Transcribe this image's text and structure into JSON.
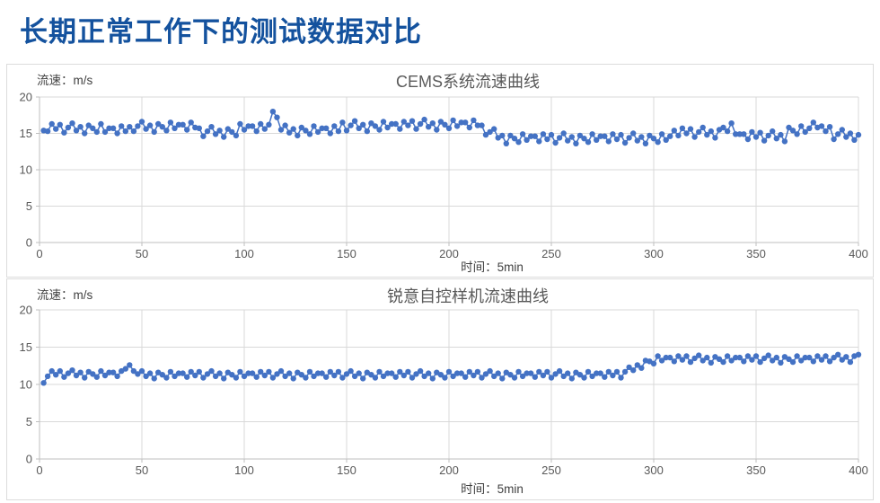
{
  "page": {
    "title": "长期正常工作下的测试数据对比",
    "title_color": "#14529E",
    "background": "#FFFFFF",
    "marker_color": "#4472C4",
    "grid_color": "#D9D9D9",
    "axis_color": "#BFBFBF"
  },
  "chart_data": [
    {
      "type": "scatter",
      "title": "CEMS系统流速曲线",
      "ylabel": "流速：m/s",
      "xlabel": "时间：5min",
      "xlim": [
        0,
        400
      ],
      "ylim": [
        0,
        20
      ],
      "x_ticks": [
        0,
        50,
        100,
        150,
        200,
        250,
        300,
        350,
        400
      ],
      "y_ticks": [
        0,
        5,
        10,
        15,
        20
      ],
      "grid": true,
      "legend": "none",
      "marker_color": "#4472C4",
      "x_start": 2,
      "x_step": 2,
      "values": [
        15.4,
        15.3,
        16.3,
        15.6,
        16.2,
        15.1,
        15.8,
        16.4,
        15.4,
        15.9,
        15.0,
        16.1,
        15.7,
        15.2,
        16.3,
        15.2,
        15.7,
        15.7,
        15.0,
        16.0,
        15.3,
        15.9,
        15.3,
        16.0,
        16.6,
        15.6,
        16.1,
        15.2,
        16.3,
        15.9,
        15.4,
        16.5,
        15.7,
        16.2,
        16.2,
        15.5,
        16.5,
        15.8,
        15.7,
        14.6,
        15.3,
        15.9,
        14.9,
        15.4,
        14.5,
        15.6,
        15.2,
        14.7,
        16.3,
        15.5,
        16.0,
        16.0,
        15.3,
        16.3,
        15.6,
        16.2,
        18.0,
        17.2,
        15.5,
        16.1,
        15.1,
        15.6,
        14.7,
        15.8,
        15.4,
        14.9,
        16.0,
        15.2,
        15.7,
        15.7,
        15.0,
        16.0,
        15.3,
        16.5,
        15.4,
        16.1,
        16.7,
        15.7,
        16.2,
        15.3,
        16.4,
        16.0,
        15.5,
        16.6,
        15.8,
        16.3,
        16.3,
        15.6,
        16.6,
        16.1,
        16.7,
        15.6,
        16.3,
        16.9,
        15.9,
        16.4,
        15.5,
        16.6,
        16.2,
        15.7,
        16.8,
        16.0,
        16.5,
        16.5,
        15.8,
        16.8,
        16.1,
        16.1,
        14.8,
        15.2,
        15.6,
        14.4,
        14.7,
        13.6,
        14.7,
        14.3,
        13.8,
        14.9,
        14.1,
        14.6,
        14.6,
        13.9,
        14.9,
        14.2,
        14.8,
        13.7,
        14.4,
        15.0,
        14.0,
        14.5,
        13.6,
        14.7,
        14.3,
        13.8,
        14.9,
        14.1,
        14.6,
        14.6,
        13.9,
        14.9,
        14.2,
        14.8,
        13.7,
        14.4,
        15.0,
        14.0,
        14.5,
        13.6,
        14.7,
        14.3,
        13.8,
        14.9,
        14.1,
        14.6,
        15.4,
        14.7,
        15.7,
        15.0,
        15.6,
        14.5,
        15.2,
        15.8,
        14.8,
        15.3,
        14.4,
        15.5,
        15.8,
        15.3,
        16.4,
        14.9,
        14.9,
        14.9,
        14.2,
        15.2,
        14.5,
        15.1,
        14.0,
        14.7,
        15.3,
        14.3,
        14.8,
        13.9,
        15.8,
        15.4,
        14.9,
        16.0,
        15.2,
        15.7,
        16.5,
        15.8,
        16.0,
        15.3,
        15.9,
        14.2,
        14.9,
        15.5,
        14.5,
        15.0,
        14.1,
        14.8
      ]
    },
    {
      "type": "scatter",
      "title": "锐意自控样机流速曲线",
      "ylabel": "流速：m/s",
      "xlabel": "时间：5min",
      "xlim": [
        0,
        400
      ],
      "ylim": [
        0,
        20
      ],
      "x_ticks": [
        0,
        50,
        100,
        150,
        200,
        250,
        300,
        350,
        400
      ],
      "y_ticks": [
        0,
        5,
        10,
        15,
        20
      ],
      "grid": true,
      "legend": "none",
      "marker_color": "#4472C4",
      "x_start": 2,
      "x_step": 2,
      "values": [
        10.2,
        11.1,
        11.8,
        11.3,
        11.8,
        11.0,
        11.5,
        11.9,
        11.2,
        11.6,
        10.9,
        11.7,
        11.4,
        11.0,
        11.8,
        11.2,
        11.6,
        11.6,
        11.1,
        11.8,
        12.1,
        12.6,
        11.8,
        11.4,
        11.8,
        11.1,
        11.5,
        10.8,
        11.6,
        11.3,
        10.9,
        11.7,
        11.1,
        11.5,
        11.5,
        11.0,
        11.7,
        11.2,
        11.7,
        10.9,
        11.4,
        11.8,
        11.1,
        11.5,
        10.8,
        11.6,
        11.3,
        10.9,
        11.7,
        11.1,
        11.5,
        11.5,
        11.0,
        11.7,
        11.2,
        11.7,
        10.9,
        11.4,
        11.8,
        11.1,
        11.5,
        10.8,
        11.6,
        11.3,
        10.9,
        11.7,
        11.1,
        11.5,
        11.5,
        11.0,
        11.7,
        11.2,
        11.7,
        10.9,
        11.4,
        11.8,
        11.1,
        11.5,
        10.8,
        11.6,
        11.3,
        10.9,
        11.7,
        11.1,
        11.5,
        11.5,
        11.0,
        11.7,
        11.2,
        11.7,
        10.9,
        11.4,
        11.8,
        11.1,
        11.5,
        10.8,
        11.6,
        11.3,
        10.9,
        11.7,
        11.1,
        11.5,
        11.5,
        11.0,
        11.7,
        11.2,
        11.7,
        10.9,
        11.4,
        11.8,
        11.1,
        11.5,
        10.8,
        11.6,
        11.3,
        10.9,
        11.7,
        11.1,
        11.5,
        11.5,
        11.0,
        11.7,
        11.2,
        11.7,
        10.9,
        11.4,
        11.8,
        11.1,
        11.5,
        10.8,
        11.6,
        11.3,
        10.9,
        11.7,
        11.1,
        11.5,
        11.5,
        11.0,
        11.7,
        11.2,
        11.7,
        10.9,
        11.7,
        12.3,
        11.9,
        12.6,
        12.2,
        13.2,
        13.1,
        12.8,
        13.8,
        13.2,
        13.6,
        13.6,
        13.1,
        13.8,
        13.3,
        13.8,
        13.0,
        13.5,
        13.9,
        13.2,
        13.6,
        12.9,
        13.7,
        13.4,
        13.0,
        13.8,
        13.2,
        13.6,
        13.6,
        13.1,
        13.8,
        13.3,
        13.8,
        13.0,
        13.5,
        13.9,
        13.2,
        13.6,
        12.9,
        13.7,
        13.4,
        13.0,
        13.8,
        13.2,
        13.6,
        13.6,
        13.1,
        13.8,
        13.3,
        13.8,
        13.1,
        13.6,
        14.0,
        13.3,
        13.7,
        13.0,
        13.8,
        14.0
      ]
    }
  ]
}
